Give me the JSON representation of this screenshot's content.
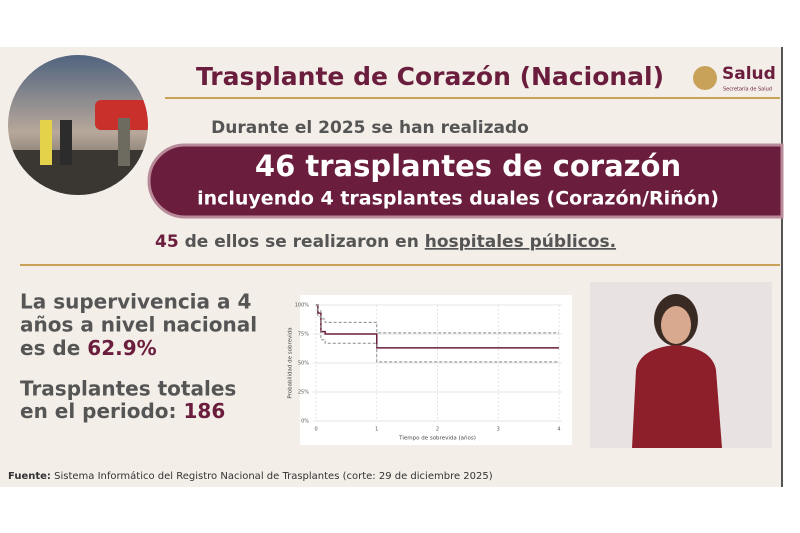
{
  "header": {
    "title": "Trasplante de Corazón (Nacional)",
    "logo": "Salud",
    "logo_sub": "Secretaría de Salud"
  },
  "intro": "Durante el 2025 se han realizado",
  "banner": {
    "main": "46 trasplantes de corazón",
    "sub": "incluyendo 4 trasplantes duales (Corazón/Riñón)"
  },
  "highlight": {
    "number": "45",
    "text": "de ellos se realizaron en",
    "link": "hospitales públicos."
  },
  "survival": {
    "lines": [
      "La supervivencia a 4",
      "años a nivel nacional",
      "es de"
    ],
    "value": "62.9%"
  },
  "totals": {
    "lines": [
      "Trasplantes totales",
      "en el periodo:"
    ],
    "value": "186"
  },
  "source": {
    "label": "Fuente:",
    "text": "Sistema Informático del Registro Nacional de Trasplantes (corte: 29 de diciembre 2025)"
  },
  "chart_data": {
    "type": "line",
    "step": true,
    "x_label": "Tiempo de sobrevida (años)",
    "y_label": "Probabilidad de sobrevida",
    "x": [
      0,
      0.03,
      0.08,
      0.15,
      1,
      4
    ],
    "series": [
      {
        "color": "#6b1d3d",
        "dashed": false,
        "values": [
          100,
          93,
          77,
          75,
          63,
          63
        ]
      },
      {
        "color": "#8a8a8a",
        "dashed": true,
        "values": [
          100,
          95,
          88,
          85,
          76,
          76
        ]
      },
      {
        "color": "#8a8a8a",
        "dashed": true,
        "values": [
          100,
          90,
          70,
          67,
          51,
          51
        ]
      }
    ],
    "xlim": [
      -0.05,
      4.05
    ],
    "ylim": [
      0,
      100
    ],
    "xticks": [
      0,
      1,
      2,
      3,
      4
    ],
    "yticks": [
      {
        "value": 0,
        "label": "0%"
      },
      {
        "value": 25,
        "label": "25%"
      },
      {
        "value": 50,
        "label": "50%"
      },
      {
        "value": 75,
        "label": "75%"
      },
      {
        "value": 100,
        "label": "100%"
      }
    ],
    "grid": true
  }
}
